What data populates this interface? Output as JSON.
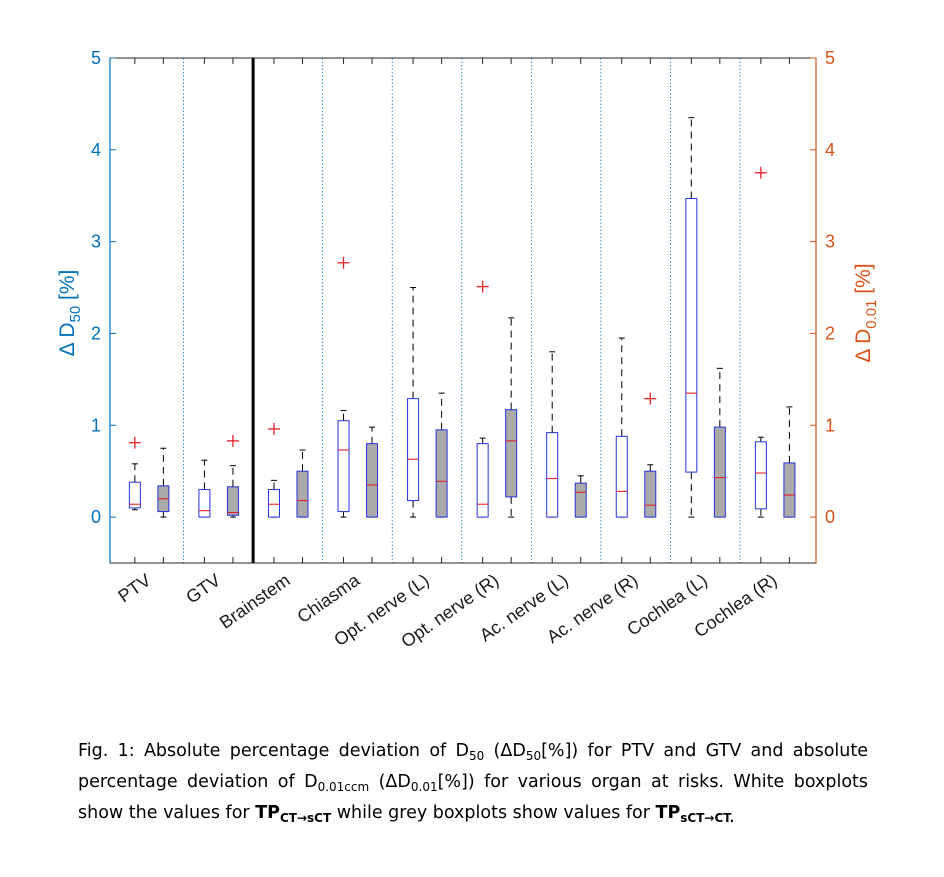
{
  "chart_data": {
    "type": "box",
    "categories": [
      "PTV",
      "GTV",
      "Brainstem",
      "Chiasma",
      "Opt. nerve (L)",
      "Opt. nerve (R)",
      "Ac. nerve (L)",
      "Ac. nerve (R)",
      "Cochlea (L)",
      "Cochlea (R)"
    ],
    "ylabel_left": "Δ D50 [%]",
    "ylabel_right": "Δ D0.01 [%]",
    "ylim": [
      -0.5,
      5
    ],
    "yticks": [
      "0",
      "1",
      "2",
      "3",
      "4",
      "5"
    ],
    "left_axis_color": "#0072bd",
    "right_axis_color": "#d95319",
    "series": [
      {
        "fill": "#ffffff",
        "boxes": [
          {
            "lower_whisker": 0.08,
            "q1": 0.1,
            "median": 0.14,
            "q3": 0.38,
            "upper_whisker": 0.58,
            "outliers": [
              0.81
            ]
          },
          {
            "lower_whisker": 0.0,
            "q1": 0.0,
            "median": 0.07,
            "q3": 0.3,
            "upper_whisker": 0.62,
            "outliers": []
          },
          {
            "lower_whisker": 0.0,
            "q1": 0.0,
            "median": 0.14,
            "q3": 0.3,
            "upper_whisker": 0.4,
            "outliers": [
              0.96
            ]
          },
          {
            "lower_whisker": 0.0,
            "q1": 0.06,
            "median": 0.73,
            "q3": 1.05,
            "upper_whisker": 1.16,
            "outliers": [
              2.77
            ]
          },
          {
            "lower_whisker": 0.0,
            "q1": 0.18,
            "median": 0.63,
            "q3": 1.29,
            "upper_whisker": 2.5,
            "outliers": []
          },
          {
            "lower_whisker": 0.0,
            "q1": 0.0,
            "median": 0.14,
            "q3": 0.8,
            "upper_whisker": 0.86,
            "outliers": [
              2.51
            ]
          },
          {
            "lower_whisker": 0.0,
            "q1": 0.0,
            "median": 0.42,
            "q3": 0.92,
            "upper_whisker": 1.8,
            "outliers": []
          },
          {
            "lower_whisker": 0.0,
            "q1": 0.0,
            "median": 0.28,
            "q3": 0.88,
            "upper_whisker": 1.95,
            "outliers": []
          },
          {
            "lower_whisker": 0.0,
            "q1": 0.49,
            "median": 1.35,
            "q3": 3.47,
            "upper_whisker": 4.35,
            "outliers": []
          },
          {
            "lower_whisker": 0.0,
            "q1": 0.09,
            "median": 0.48,
            "q3": 0.82,
            "upper_whisker": 0.87,
            "outliers": [
              3.75
            ]
          }
        ]
      },
      {
        "fill": "#aaaaaa",
        "boxes": [
          {
            "lower_whisker": 0.0,
            "q1": 0.06,
            "median": 0.2,
            "q3": 0.34,
            "upper_whisker": 0.75,
            "outliers": []
          },
          {
            "lower_whisker": 0.0,
            "q1": 0.02,
            "median": 0.05,
            "q3": 0.33,
            "upper_whisker": 0.56,
            "outliers": [
              0.83
            ]
          },
          {
            "lower_whisker": 0.0,
            "q1": 0.0,
            "median": 0.18,
            "q3": 0.5,
            "upper_whisker": 0.73,
            "outliers": []
          },
          {
            "lower_whisker": 0.0,
            "q1": 0.0,
            "median": 0.35,
            "q3": 0.8,
            "upper_whisker": 0.98,
            "outliers": []
          },
          {
            "lower_whisker": 0.0,
            "q1": 0.0,
            "median": 0.39,
            "q3": 0.95,
            "upper_whisker": 1.35,
            "outliers": []
          },
          {
            "lower_whisker": 0.0,
            "q1": 0.22,
            "median": 0.83,
            "q3": 1.17,
            "upper_whisker": 2.17,
            "outliers": []
          },
          {
            "lower_whisker": 0.0,
            "q1": 0.0,
            "median": 0.27,
            "q3": 0.37,
            "upper_whisker": 0.45,
            "outliers": []
          },
          {
            "lower_whisker": 0.0,
            "q1": 0.0,
            "median": 0.13,
            "q3": 0.5,
            "upper_whisker": 0.57,
            "outliers": [
              1.29
            ]
          },
          {
            "lower_whisker": 0.0,
            "q1": 0.0,
            "median": 0.43,
            "q3": 0.98,
            "upper_whisker": 1.62,
            "outliers": []
          },
          {
            "lower_whisker": 0.0,
            "q1": 0.0,
            "median": 0.24,
            "q3": 0.59,
            "upper_whisker": 1.2,
            "outliers": []
          }
        ]
      }
    ]
  },
  "caption": {
    "p1": "Fig. 1: Absolute percentage deviation of D",
    "s1": "50",
    "p2": " (ΔD",
    "s2": "50",
    "p3": "[%]) for PTV and GTV and absolute percentage deviation of D",
    "s3": "0.01ccm",
    "p4": " (ΔD",
    "s4": "0.01",
    "p5": "[%]) for various organ at risks. White boxplots show the values for ",
    "b1": "TP",
    "s5": "CT→sCT",
    "p6": " while grey boxplots show values for ",
    "b2": "TP",
    "s6": "sCT→CT.",
    "p7": ""
  }
}
